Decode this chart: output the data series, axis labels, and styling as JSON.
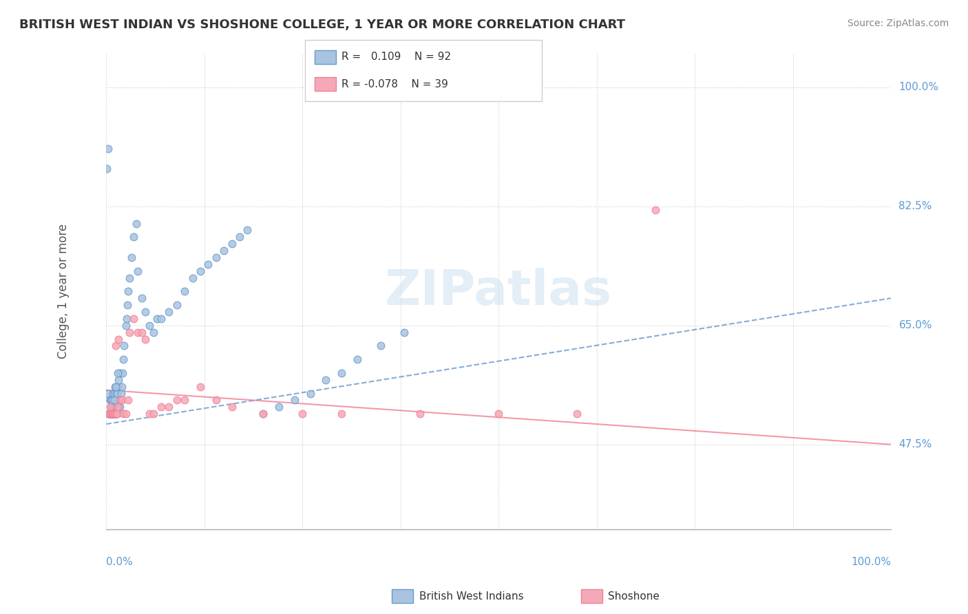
{
  "title": "BRITISH WEST INDIAN VS SHOSHONE COLLEGE, 1 YEAR OR MORE CORRELATION CHART",
  "source": "Source: ZipAtlas.com",
  "ylabel": "College, 1 year or more",
  "ylabel_right_labels": [
    "100.0%",
    "82.5%",
    "65.0%",
    "47.5%"
  ],
  "ylabel_right_positions": [
    1.0,
    0.825,
    0.65,
    0.475
  ],
  "blue_color": "#a8c4e0",
  "pink_color": "#f4a8b8",
  "blue_edge_color": "#6699cc",
  "pink_edge_color": "#f08090",
  "text_color": "#5b9bd5",
  "blue_scatter_x": [
    0.001,
    0.002,
    0.002,
    0.003,
    0.003,
    0.003,
    0.004,
    0.004,
    0.004,
    0.005,
    0.005,
    0.005,
    0.005,
    0.006,
    0.006,
    0.006,
    0.006,
    0.007,
    0.007,
    0.007,
    0.007,
    0.008,
    0.008,
    0.008,
    0.008,
    0.008,
    0.009,
    0.009,
    0.009,
    0.009,
    0.01,
    0.01,
    0.01,
    0.011,
    0.011,
    0.011,
    0.012,
    0.012,
    0.013,
    0.013,
    0.014,
    0.014,
    0.015,
    0.015,
    0.016,
    0.016,
    0.017,
    0.017,
    0.018,
    0.019,
    0.02,
    0.021,
    0.022,
    0.023,
    0.025,
    0.026,
    0.027,
    0.028,
    0.03,
    0.032,
    0.035,
    0.038,
    0.04,
    0.045,
    0.05,
    0.055,
    0.06,
    0.065,
    0.07,
    0.08,
    0.09,
    0.1,
    0.11,
    0.12,
    0.13,
    0.14,
    0.15,
    0.16,
    0.17,
    0.18,
    0.2,
    0.22,
    0.24,
    0.26,
    0.28,
    0.3,
    0.32,
    0.35,
    0.38,
    0.01,
    0.012,
    0.015
  ],
  "blue_scatter_y": [
    0.88,
    0.91,
    0.55,
    0.52,
    0.52,
    0.52,
    0.52,
    0.52,
    0.52,
    0.52,
    0.54,
    0.54,
    0.54,
    0.52,
    0.52,
    0.52,
    0.53,
    0.52,
    0.52,
    0.52,
    0.54,
    0.52,
    0.52,
    0.52,
    0.53,
    0.54,
    0.52,
    0.52,
    0.53,
    0.55,
    0.52,
    0.53,
    0.55,
    0.52,
    0.53,
    0.56,
    0.52,
    0.53,
    0.52,
    0.55,
    0.52,
    0.55,
    0.53,
    0.56,
    0.53,
    0.57,
    0.53,
    0.58,
    0.54,
    0.55,
    0.56,
    0.58,
    0.6,
    0.62,
    0.65,
    0.66,
    0.68,
    0.7,
    0.72,
    0.75,
    0.78,
    0.8,
    0.73,
    0.69,
    0.67,
    0.65,
    0.64,
    0.66,
    0.66,
    0.67,
    0.68,
    0.7,
    0.72,
    0.73,
    0.74,
    0.75,
    0.76,
    0.77,
    0.78,
    0.79,
    0.52,
    0.53,
    0.54,
    0.55,
    0.57,
    0.58,
    0.6,
    0.62,
    0.64,
    0.54,
    0.56,
    0.58
  ],
  "pink_scatter_x": [
    0.003,
    0.005,
    0.005,
    0.007,
    0.008,
    0.009,
    0.01,
    0.011,
    0.012,
    0.013,
    0.014,
    0.015,
    0.016,
    0.018,
    0.02,
    0.022,
    0.025,
    0.028,
    0.03,
    0.035,
    0.04,
    0.045,
    0.05,
    0.055,
    0.06,
    0.07,
    0.08,
    0.09,
    0.1,
    0.12,
    0.14,
    0.16,
    0.2,
    0.25,
    0.3,
    0.4,
    0.5,
    0.6,
    0.7
  ],
  "pink_scatter_y": [
    0.52,
    0.52,
    0.53,
    0.52,
    0.52,
    0.52,
    0.52,
    0.52,
    0.62,
    0.52,
    0.52,
    0.53,
    0.63,
    0.54,
    0.54,
    0.52,
    0.52,
    0.54,
    0.64,
    0.66,
    0.64,
    0.64,
    0.63,
    0.52,
    0.52,
    0.53,
    0.53,
    0.54,
    0.54,
    0.56,
    0.54,
    0.53,
    0.52,
    0.52,
    0.52,
    0.52,
    0.52,
    0.52,
    0.82
  ],
  "blue_line_x": [
    0.0,
    1.0
  ],
  "blue_line_y": [
    0.505,
    0.69
  ],
  "pink_line_x": [
    0.0,
    1.0
  ],
  "pink_line_y": [
    0.555,
    0.475
  ],
  "xmin": 0.0,
  "xmax": 1.0,
  "ymin": 0.35,
  "ymax": 1.05,
  "background_color": "#ffffff",
  "grid_color": "#cccccc"
}
